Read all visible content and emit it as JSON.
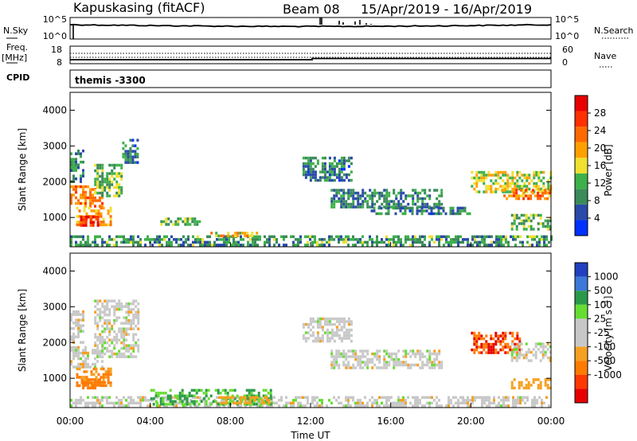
{
  "header": {
    "station": "Kapuskasing (fitACF)",
    "beam": "Beam 08",
    "dates": "15/Apr/2019 - 16/Apr/2019"
  },
  "noise_panel": {
    "left_label": "N.Sky",
    "left_ticks": [
      "10^5",
      "10^0"
    ],
    "right_ticks": [
      "10^5",
      "10^0"
    ],
    "right_label": "N.Search",
    "right_style": "dotted"
  },
  "freq_panel": {
    "left_label_top": "Freq.",
    "left_label_bottom": "[MHz]",
    "left_ticks": [
      "18",
      "8"
    ],
    "right_ticks": [
      "60",
      "0"
    ],
    "right_label": "Nave",
    "right_style": "dotted"
  },
  "cpid_panel": {
    "label": "CPID",
    "value": "themis -3300"
  },
  "colors": {
    "power_scale": [
      "#0030ff",
      "#2a4aa8",
      "#3a8a5a",
      "#3db04a",
      "#f0e030",
      "#ffa000",
      "#ff6a00",
      "#ff3000",
      "#e80000"
    ],
    "velocity_scale": [
      "#2040c0",
      "#3c78d8",
      "#2a9a4a",
      "#66dd33",
      "#c8c8c8",
      "#c8c8c8",
      "#f4a020",
      "#ff7a00",
      "#ff3800",
      "#e80000"
    ]
  },
  "chart_data": [
    {
      "type": "heatmap",
      "name": "power",
      "xlabel": "",
      "ylabel": "Slant Range [km]",
      "yticks": [
        "1000",
        "2000",
        "3000",
        "4000"
      ],
      "ylim": [
        180,
        4500
      ],
      "xlim": [
        "00:00",
        "24:00"
      ],
      "colorbar": {
        "label": "Power [dB]",
        "ticks": [
          "4",
          "8",
          "12",
          "16",
          "20",
          "24",
          "28"
        ],
        "range": [
          0,
          32
        ]
      },
      "regions": [
        {
          "t": [
            0.0,
            1.6
          ],
          "r": [
            1300,
            1900
          ],
          "v": 22
        },
        {
          "t": [
            0.0,
            0.6
          ],
          "r": [
            2000,
            2900
          ],
          "v": 9
        },
        {
          "t": [
            1.2,
            2.6
          ],
          "r": [
            1600,
            2500
          ],
          "v": 12
        },
        {
          "t": [
            2.6,
            3.4
          ],
          "r": [
            2500,
            3200
          ],
          "v": 8
        },
        {
          "t": [
            0.3,
            2.0
          ],
          "r": [
            800,
            1300
          ],
          "v": 20
        },
        {
          "t": [
            0.5,
            1.4
          ],
          "r": [
            800,
            1050
          ],
          "v": 28
        },
        {
          "t": [
            0.0,
            24.0
          ],
          "r": [
            200,
            500
          ],
          "v": 10
        },
        {
          "t": [
            4.5,
            6.5
          ],
          "r": [
            800,
            1000
          ],
          "v": 12
        },
        {
          "t": [
            7.0,
            9.5
          ],
          "r": [
            450,
            600
          ],
          "v": 18
        },
        {
          "t": [
            11.6,
            14.0
          ],
          "r": [
            2000,
            2700
          ],
          "v": 8
        },
        {
          "t": [
            13.0,
            18.5
          ],
          "r": [
            1300,
            1800
          ],
          "v": 9
        },
        {
          "t": [
            15.0,
            20.0
          ],
          "r": [
            1100,
            1300
          ],
          "v": 8
        },
        {
          "t": [
            20.0,
            24.0
          ],
          "r": [
            1700,
            2300
          ],
          "v": 16
        },
        {
          "t": [
            21.5,
            24.0
          ],
          "r": [
            1500,
            1800
          ],
          "v": 22
        },
        {
          "t": [
            22.0,
            24.0
          ],
          "r": [
            700,
            1100
          ],
          "v": 12
        }
      ]
    },
    {
      "type": "heatmap",
      "name": "velocity",
      "xlabel": "Time UT",
      "ylabel": "Slant Range [km]",
      "xticks": [
        "00:00",
        "04:00",
        "08:00",
        "12:00",
        "16:00",
        "20:00",
        "00:00"
      ],
      "yticks": [
        "1000",
        "2000",
        "3000",
        "4000"
      ],
      "ylim": [
        180,
        4500
      ],
      "xlim": [
        "00:00",
        "24:00"
      ],
      "colorbar": {
        "label": "Velocity [m s^-1]",
        "ticks": [
          "1000",
          "500",
          "100",
          "25",
          "-25",
          "-100",
          "-500",
          "-1000"
        ]
      },
      "regions": [
        {
          "t": [
            0.0,
            1.6
          ],
          "r": [
            1300,
            1900
          ],
          "v": 0
        },
        {
          "t": [
            0.0,
            0.6
          ],
          "r": [
            2000,
            2900
          ],
          "v": 0
        },
        {
          "t": [
            1.2,
            3.4
          ],
          "r": [
            1600,
            3200
          ],
          "v": 0
        },
        {
          "t": [
            0.3,
            2.0
          ],
          "r": [
            800,
            1300
          ],
          "v": -100
        },
        {
          "t": [
            0.6,
            1.8
          ],
          "r": [
            700,
            1000
          ],
          "v": -150
        },
        {
          "t": [
            0.0,
            24.0
          ],
          "r": [
            200,
            500
          ],
          "v": 0
        },
        {
          "t": [
            4.0,
            10.0
          ],
          "r": [
            300,
            700
          ],
          "v": 100
        },
        {
          "t": [
            7.5,
            10.0
          ],
          "r": [
            300,
            500
          ],
          "v": -60
        },
        {
          "t": [
            11.6,
            14.0
          ],
          "r": [
            2000,
            2700
          ],
          "v": 0
        },
        {
          "t": [
            13.0,
            18.5
          ],
          "r": [
            1300,
            1800
          ],
          "v": 0
        },
        {
          "t": [
            20.0,
            22.5
          ],
          "r": [
            1700,
            2300
          ],
          "v": -500
        },
        {
          "t": [
            22.0,
            24.0
          ],
          "r": [
            1500,
            2000
          ],
          "v": 0
        },
        {
          "t": [
            22.0,
            24.0
          ],
          "r": [
            700,
            1000
          ],
          "v": -60
        }
      ]
    }
  ]
}
